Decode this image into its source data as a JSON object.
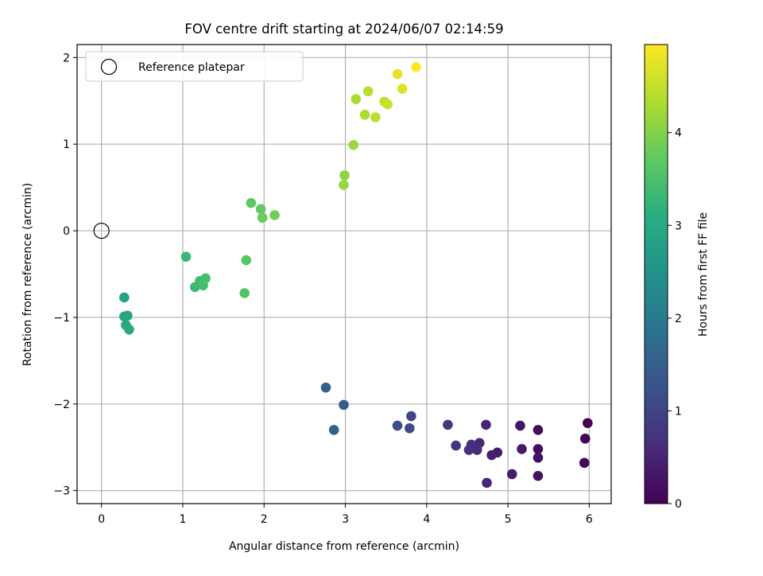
{
  "chart_data": {
    "type": "scatter",
    "title": "FOV centre drift starting at 2024/06/07 02:14:59",
    "xlabel": "Angular distance from reference (arcmin)",
    "ylabel": "Rotation from reference (arcmin)",
    "xlim": [
      -0.3,
      6.27
    ],
    "ylim": [
      -3.15,
      2.15
    ],
    "x_ticks": [
      0,
      1,
      2,
      3,
      4,
      5,
      6
    ],
    "x_tick_labels": [
      "0",
      "1",
      "2",
      "3",
      "4",
      "5",
      "6"
    ],
    "y_ticks": [
      -3,
      -2,
      -1,
      0,
      1,
      2
    ],
    "y_tick_labels": [
      "−3",
      "−2",
      "−1",
      "0",
      "1",
      "2"
    ],
    "grid": true,
    "legend": {
      "placement": "top-left",
      "entries": [
        "Reference platepar"
      ]
    },
    "reference_point": {
      "x": 0,
      "y": 0,
      "label": "Reference platepar"
    },
    "colorbar": {
      "label": "Hours from first FF file",
      "colormap": "viridis",
      "range": [
        0,
        4.95
      ],
      "ticks": [
        0,
        1,
        2,
        3,
        4
      ],
      "tick_labels": [
        "0",
        "1",
        "2",
        "3",
        "4"
      ]
    },
    "points": [
      {
        "x": 5.98,
        "y": -2.22,
        "c": 0.0
      },
      {
        "x": 5.95,
        "y": -2.4,
        "c": 0.05
      },
      {
        "x": 5.94,
        "y": -2.68,
        "c": 0.1
      },
      {
        "x": 5.37,
        "y": -2.3,
        "c": 0.15
      },
      {
        "x": 5.37,
        "y": -2.52,
        "c": 0.2
      },
      {
        "x": 5.37,
        "y": -2.62,
        "c": 0.22
      },
      {
        "x": 5.37,
        "y": -2.83,
        "c": 0.25
      },
      {
        "x": 5.15,
        "y": -2.25,
        "c": 0.3
      },
      {
        "x": 5.17,
        "y": -2.52,
        "c": 0.35
      },
      {
        "x": 5.05,
        "y": -2.81,
        "c": 0.37
      },
      {
        "x": 4.87,
        "y": -2.56,
        "c": 0.42
      },
      {
        "x": 4.8,
        "y": -2.59,
        "c": 0.45
      },
      {
        "x": 4.73,
        "y": -2.24,
        "c": 0.5
      },
      {
        "x": 4.74,
        "y": -2.91,
        "c": 0.52
      },
      {
        "x": 4.65,
        "y": -2.45,
        "c": 0.55
      },
      {
        "x": 4.62,
        "y": -2.53,
        "c": 0.6
      },
      {
        "x": 4.55,
        "y": -2.47,
        "c": 0.65
      },
      {
        "x": 4.52,
        "y": -2.53,
        "c": 0.7
      },
      {
        "x": 4.36,
        "y": -2.48,
        "c": 0.75
      },
      {
        "x": 4.26,
        "y": -2.24,
        "c": 0.8
      },
      {
        "x": 3.81,
        "y": -2.14,
        "c": 1.05
      },
      {
        "x": 3.79,
        "y": -2.28,
        "c": 1.1
      },
      {
        "x": 3.64,
        "y": -2.25,
        "c": 1.15
      },
      {
        "x": 2.98,
        "y": -2.01,
        "c": 1.45
      },
      {
        "x": 2.86,
        "y": -2.3,
        "c": 1.5
      },
      {
        "x": 2.76,
        "y": -1.81,
        "c": 1.55
      },
      {
        "x": 0.28,
        "y": -0.77,
        "c": 2.85
      },
      {
        "x": 0.28,
        "y": -0.99,
        "c": 2.9
      },
      {
        "x": 0.32,
        "y": -0.98,
        "c": 2.95
      },
      {
        "x": 0.3,
        "y": -1.09,
        "c": 2.97
      },
      {
        "x": 0.34,
        "y": -1.14,
        "c": 3.0
      },
      {
        "x": 1.04,
        "y": -0.3,
        "c": 3.3
      },
      {
        "x": 1.15,
        "y": -0.65,
        "c": 3.35
      },
      {
        "x": 1.21,
        "y": -0.58,
        "c": 3.4
      },
      {
        "x": 1.25,
        "y": -0.63,
        "c": 3.42
      },
      {
        "x": 1.28,
        "y": -0.55,
        "c": 3.45
      },
      {
        "x": 1.76,
        "y": -0.72,
        "c": 3.6
      },
      {
        "x": 1.78,
        "y": -0.34,
        "c": 3.65
      },
      {
        "x": 1.84,
        "y": 0.32,
        "c": 3.7
      },
      {
        "x": 1.96,
        "y": 0.25,
        "c": 3.75
      },
      {
        "x": 1.98,
        "y": 0.15,
        "c": 3.8
      },
      {
        "x": 2.13,
        "y": 0.18,
        "c": 3.85
      },
      {
        "x": 2.99,
        "y": 0.64,
        "c": 4.1
      },
      {
        "x": 2.98,
        "y": 0.53,
        "c": 4.15
      },
      {
        "x": 3.1,
        "y": 0.99,
        "c": 4.2
      },
      {
        "x": 3.13,
        "y": 1.52,
        "c": 4.3
      },
      {
        "x": 3.24,
        "y": 1.34,
        "c": 4.35
      },
      {
        "x": 3.28,
        "y": 1.61,
        "c": 4.4
      },
      {
        "x": 3.37,
        "y": 1.31,
        "c": 4.45
      },
      {
        "x": 3.48,
        "y": 1.49,
        "c": 4.5
      },
      {
        "x": 3.52,
        "y": 1.46,
        "c": 4.55
      },
      {
        "x": 3.7,
        "y": 1.64,
        "c": 4.7
      },
      {
        "x": 3.64,
        "y": 1.81,
        "c": 4.75
      },
      {
        "x": 3.87,
        "y": 1.89,
        "c": 4.95
      }
    ]
  }
}
